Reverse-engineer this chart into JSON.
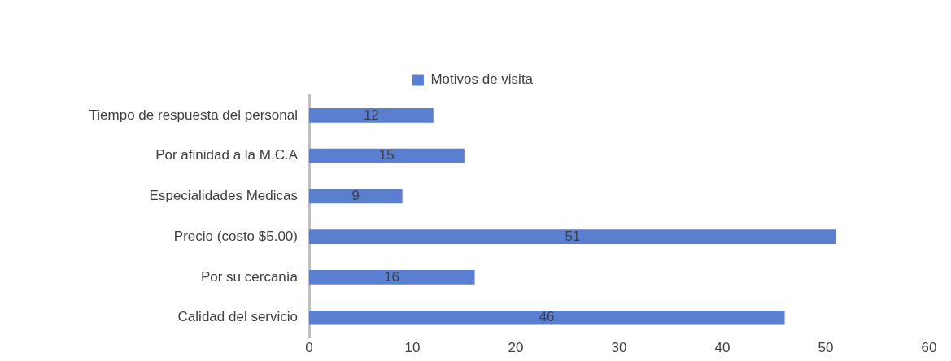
{
  "chart_data": {
    "type": "bar",
    "orientation": "horizontal",
    "categories": [
      "Tiempo de respuesta del personal",
      "Por afinidad a la M.C.A",
      "Especialidades Medicas",
      "Precio (costo $5.00)",
      "Por su cercanía",
      "Calidad del servicio"
    ],
    "series": [
      {
        "name": "Motivos de visita",
        "color": "#5b7fd0",
        "values": [
          12,
          15,
          9,
          51,
          16,
          46
        ]
      }
    ],
    "xlim": [
      0,
      60
    ],
    "xticks": [
      0,
      10,
      20,
      30,
      40,
      50,
      60
    ],
    "grid": false,
    "legend": "top",
    "data_labels": true
  }
}
